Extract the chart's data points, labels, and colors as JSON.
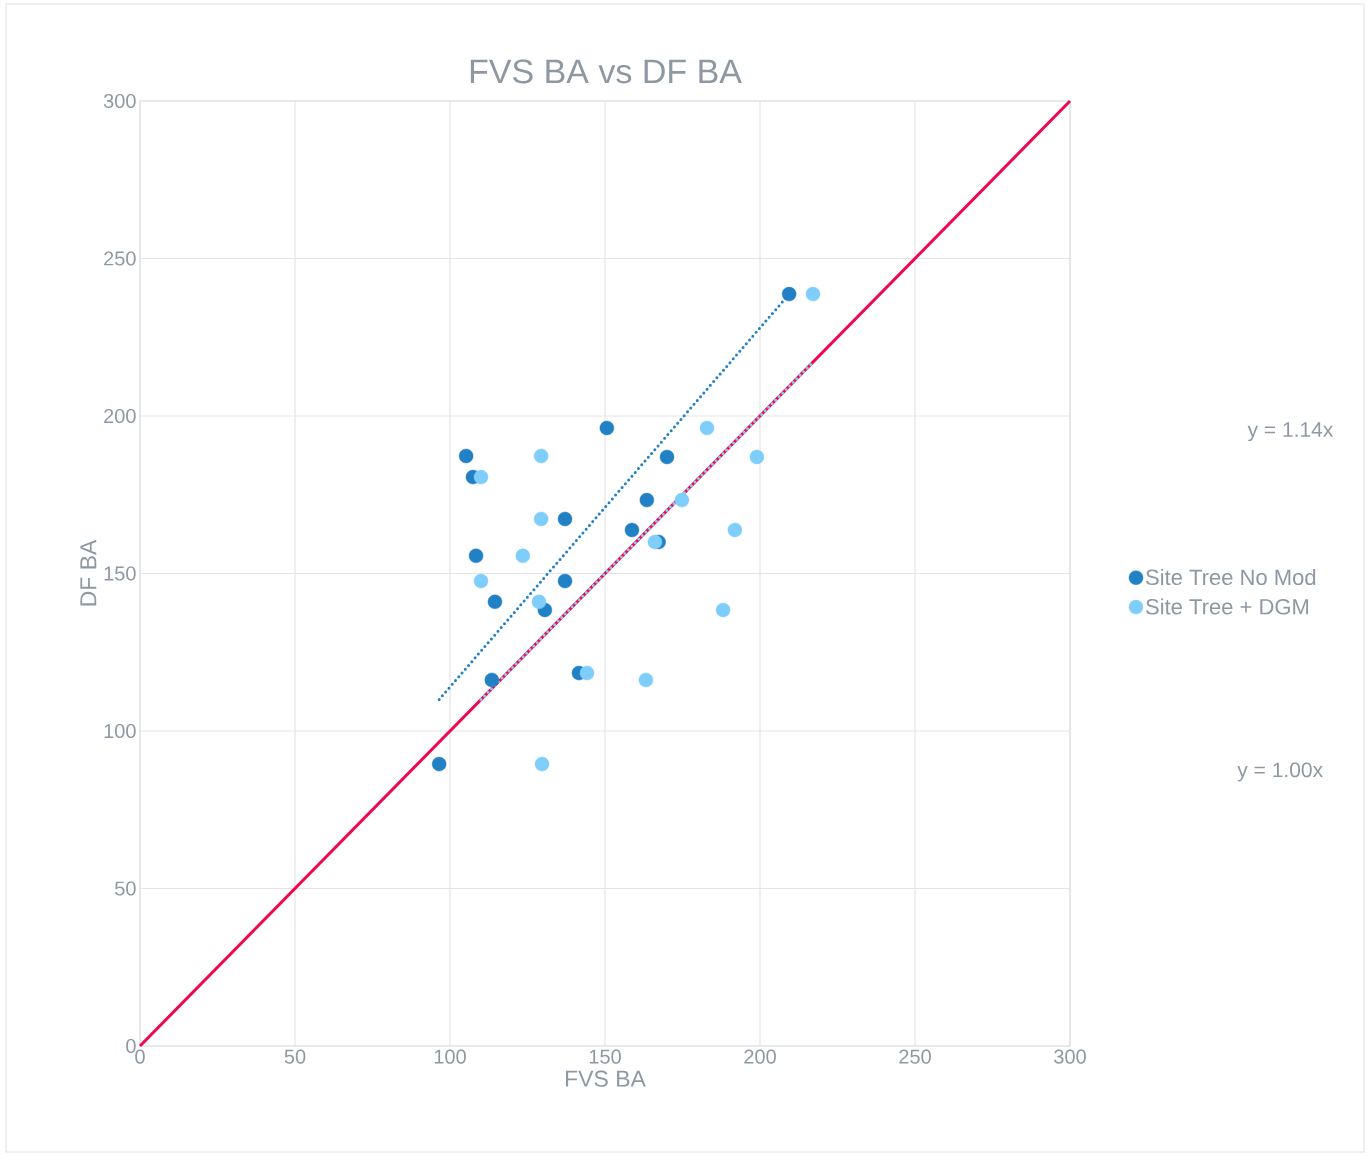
{
  "chart_data": {
    "type": "scatter",
    "title": "FVS BA vs DF BA",
    "xlabel": "FVS BA",
    "ylabel": "DF BA",
    "xlim": [
      0,
      300
    ],
    "ylim": [
      0,
      300
    ],
    "xticks": [
      0,
      50,
      100,
      150,
      200,
      250,
      300
    ],
    "yticks": [
      0,
      50,
      100,
      150,
      200,
      250,
      300
    ],
    "grid": true,
    "legend": "right",
    "marker": "circle",
    "annotations": [
      "y = 1.14x",
      "y = 1.00x"
    ],
    "series": [
      {
        "name": "Site Tree No Mod",
        "color": "#2281c4",
        "x": [
          209.4,
          150.6,
          105.2,
          107.4,
          170,
          163.5,
          137.1,
          158.7,
          167.3,
          108.4,
          137.1,
          114.5,
          130.6,
          141.6,
          113.5,
          96.5
        ],
        "values": [
          238.7,
          196.2,
          187.3,
          180.6,
          187,
          173.3,
          167.3,
          163.8,
          160,
          155.6,
          147.6,
          141,
          138.4,
          118.4,
          116.2,
          89.5
        ]
      },
      {
        "name": "Site Tree + DGM",
        "color": "#7fcdfb",
        "x": [
          217.1,
          182.9,
          129.4,
          110,
          199,
          174.8,
          129.4,
          191.9,
          166.1,
          123.5,
          110,
          128.7,
          188.1,
          144.2,
          163.2,
          129.7
        ],
        "values": [
          238.7,
          196.2,
          187.3,
          180.6,
          187,
          173.3,
          167.3,
          163.8,
          160,
          155.6,
          147.6,
          141,
          138.4,
          118.4,
          116.2,
          89.5
        ]
      },
      {
        "type": "line",
        "marker": "none",
        "color": "#f0074f",
        "line_style": "solid",
        "x": [
          0,
          300
        ],
        "values": [
          0,
          300
        ]
      },
      {
        "type": "line",
        "marker": "none",
        "color": "#2281c4",
        "line_style": "dotted",
        "x": [
          96.5,
          209.4
        ],
        "values": [
          110,
          238.7
        ]
      },
      {
        "type": "line",
        "marker": "none",
        "color": "#7fcdfb",
        "line_style": "dotted",
        "x": [
          110,
          217.1
        ],
        "values": [
          110,
          217.1
        ]
      }
    ]
  }
}
